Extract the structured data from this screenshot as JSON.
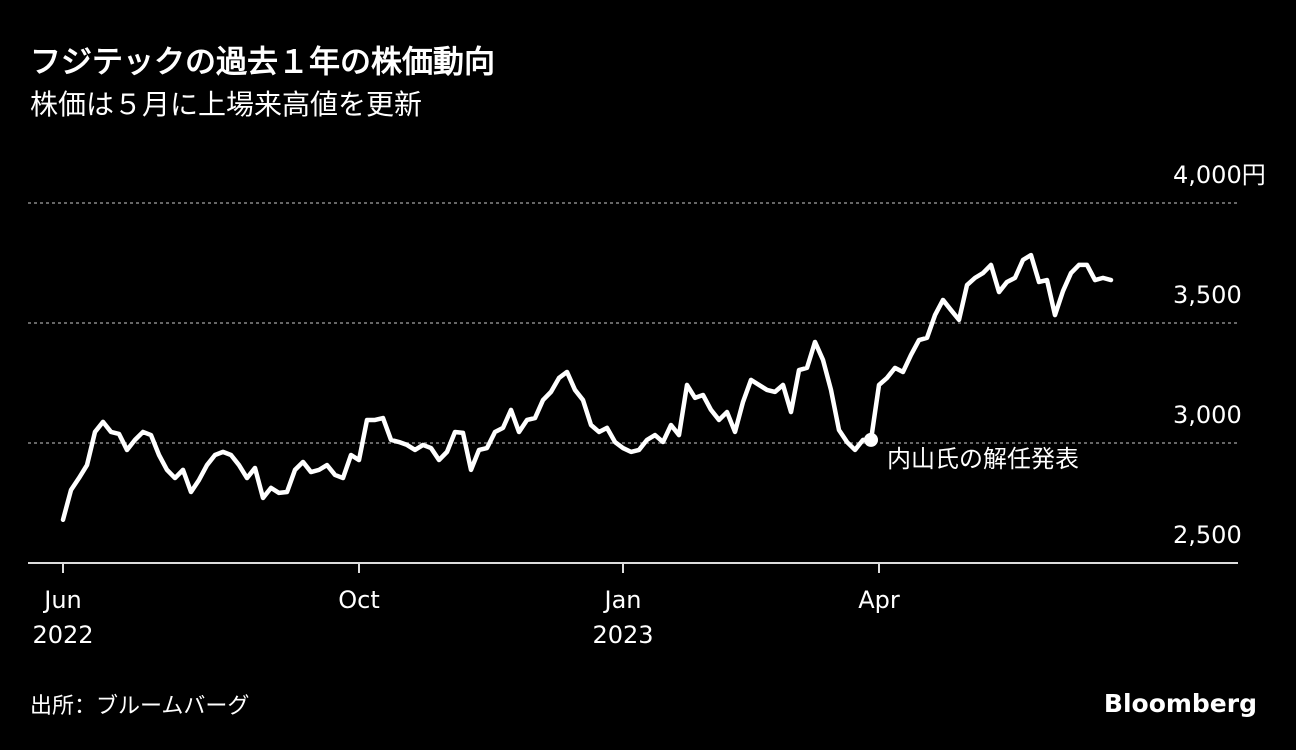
{
  "chart_data": {
    "type": "line",
    "title": "フジテックの過去１年の株価動向",
    "subtitle": "株価は５月に上場来高値を更新",
    "source": "出所：ブルームバーグ",
    "logo": "Bloomberg",
    "color": "#ffffff",
    "grid": true,
    "ylim": [
      2500,
      4000
    ],
    "yticks": [
      {
        "value": 2500,
        "label": "2,500"
      },
      {
        "value": 3000,
        "label": "3,000"
      },
      {
        "value": 3500,
        "label": "3,500"
      },
      {
        "value": 4000,
        "label": "4,000円"
      }
    ],
    "xlim": [
      0,
      131
    ],
    "xticks": [
      {
        "value": 0,
        "label": "Jun",
        "sublabel": "2022"
      },
      {
        "value": 37,
        "label": "Oct"
      },
      {
        "value": 70,
        "label": "Jan",
        "sublabel": "2023"
      },
      {
        "value": 102,
        "label": "Apr"
      }
    ],
    "annotation": {
      "text": "内山氏の解任発表",
      "x": 101
    },
    "values": [
      2680,
      2804,
      2854,
      2908,
      3046,
      3088,
      3046,
      3038,
      2971,
      3013,
      3046,
      3033,
      2950,
      2888,
      2854,
      2888,
      2796,
      2846,
      2908,
      2950,
      2963,
      2950,
      2908,
      2854,
      2896,
      2771,
      2813,
      2792,
      2796,
      2888,
      2921,
      2879,
      2888,
      2908,
      2867,
      2854,
      2950,
      2929,
      3096,
      3096,
      3104,
      3013,
      3004,
      2992,
      2971,
      2992,
      2979,
      2929,
      2963,
      3046,
      3042,
      2888,
      2971,
      2979,
      3046,
      3063,
      3138,
      3046,
      3096,
      3104,
      3179,
      3213,
      3271,
      3296,
      3221,
      3179,
      3075,
      3046,
      3063,
      3004,
      2979,
      2963,
      2971,
      3013,
      3033,
      3004,
      3075,
      3033,
      3242,
      3188,
      3200,
      3138,
      3096,
      3129,
      3046,
      3171,
      3263,
      3242,
      3221,
      3213,
      3242,
      3129,
      3304,
      3313,
      3421,
      3346,
      3221,
      3054,
      3004,
      2971,
      3013,
      3013,
      3242,
      3271,
      3313,
      3296,
      3367,
      3429,
      3438,
      3533,
      3596,
      3554,
      3513,
      3658,
      3688,
      3708,
      3742,
      3629,
      3671,
      3688,
      3763,
      3783,
      3671,
      3679,
      3533,
      3633,
      3708,
      3742,
      3742,
      3679,
      3688,
      3679
    ]
  }
}
